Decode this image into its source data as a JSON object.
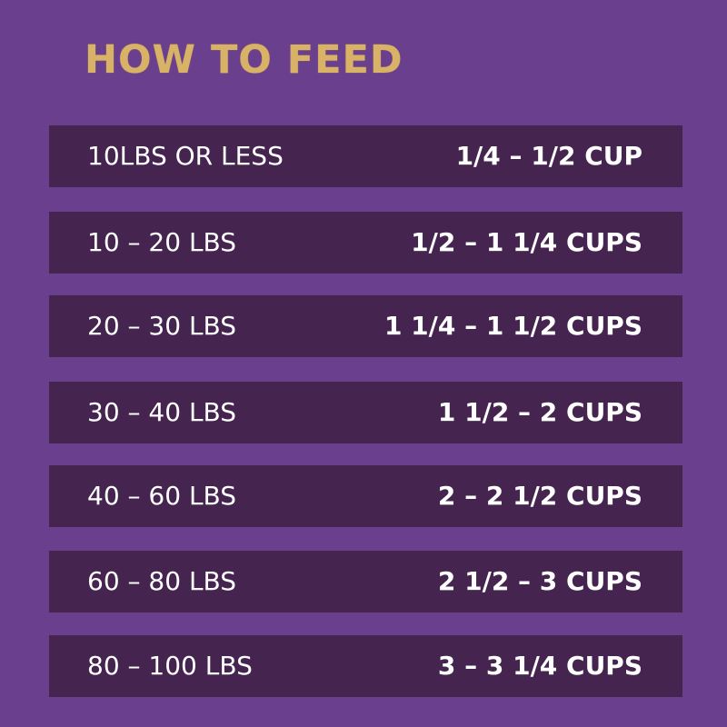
{
  "title": "HOW TO FEED",
  "colors": {
    "background": "#6a3f8e",
    "row_background": "#45244f",
    "title": "#d8b266",
    "text": "#ffffff"
  },
  "rows": [
    {
      "weight": "10LBS OR LESS",
      "amount": "1/4 – 1/2 CUP"
    },
    {
      "weight": "10 – 20 LBS",
      "amount": "1/2 – 1 1/4 CUPS"
    },
    {
      "weight": "20 – 30 LBS",
      "amount": "1 1/4 – 1 1/2 CUPS"
    },
    {
      "weight": "30 – 40 LBS",
      "amount": "1 1/2 – 2 CUPS"
    },
    {
      "weight": "40 – 60 LBS",
      "amount": "2 – 2 1/2 CUPS"
    },
    {
      "weight": "60 – 80 LBS",
      "amount": "2 1/2 – 3 CUPS"
    },
    {
      "weight": "80 – 100 LBS",
      "amount": "3 – 3 1/4 CUPS"
    }
  ]
}
